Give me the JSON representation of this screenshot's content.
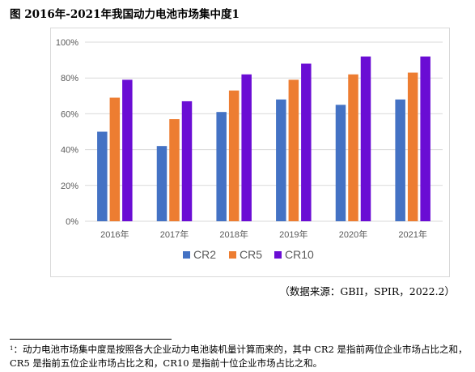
{
  "figure": {
    "title": "图 2016年-2021年我国动力电池市场集中度1"
  },
  "chart_data": {
    "type": "bar",
    "categories": [
      "2016年",
      "2017年",
      "2018年",
      "2019年",
      "2020年",
      "2021年"
    ],
    "series": [
      {
        "name": "CR2",
        "color": "#4472C4",
        "values": [
          50,
          42,
          61,
          68,
          65,
          68
        ]
      },
      {
        "name": "CR5",
        "color": "#ED7D31",
        "values": [
          69,
          57,
          73,
          79,
          82,
          83
        ]
      },
      {
        "name": "CR10",
        "color": "#6A0DD4",
        "values": [
          79,
          67,
          82,
          88,
          92,
          92
        ]
      }
    ],
    "ylim": [
      0,
      100
    ],
    "yticks": [
      "0%",
      "20%",
      "40%",
      "60%",
      "80%",
      "100%"
    ],
    "ytick_values": [
      0,
      20,
      40,
      60,
      80,
      100
    ],
    "grid": true,
    "legend_position": "bottom"
  },
  "source": {
    "text": "（数据来源：GBII，SPIR，2022.2）"
  },
  "footnote": {
    "marker": "1",
    "text": "：动力电池市场集中度是按照各大企业动力电池装机量计算而来的，其中 CR2 是指前两位企业市场占比之和，CR5 是指前五位企业市场占比之和，CR10 是指前十位企业市场占比之和。"
  }
}
